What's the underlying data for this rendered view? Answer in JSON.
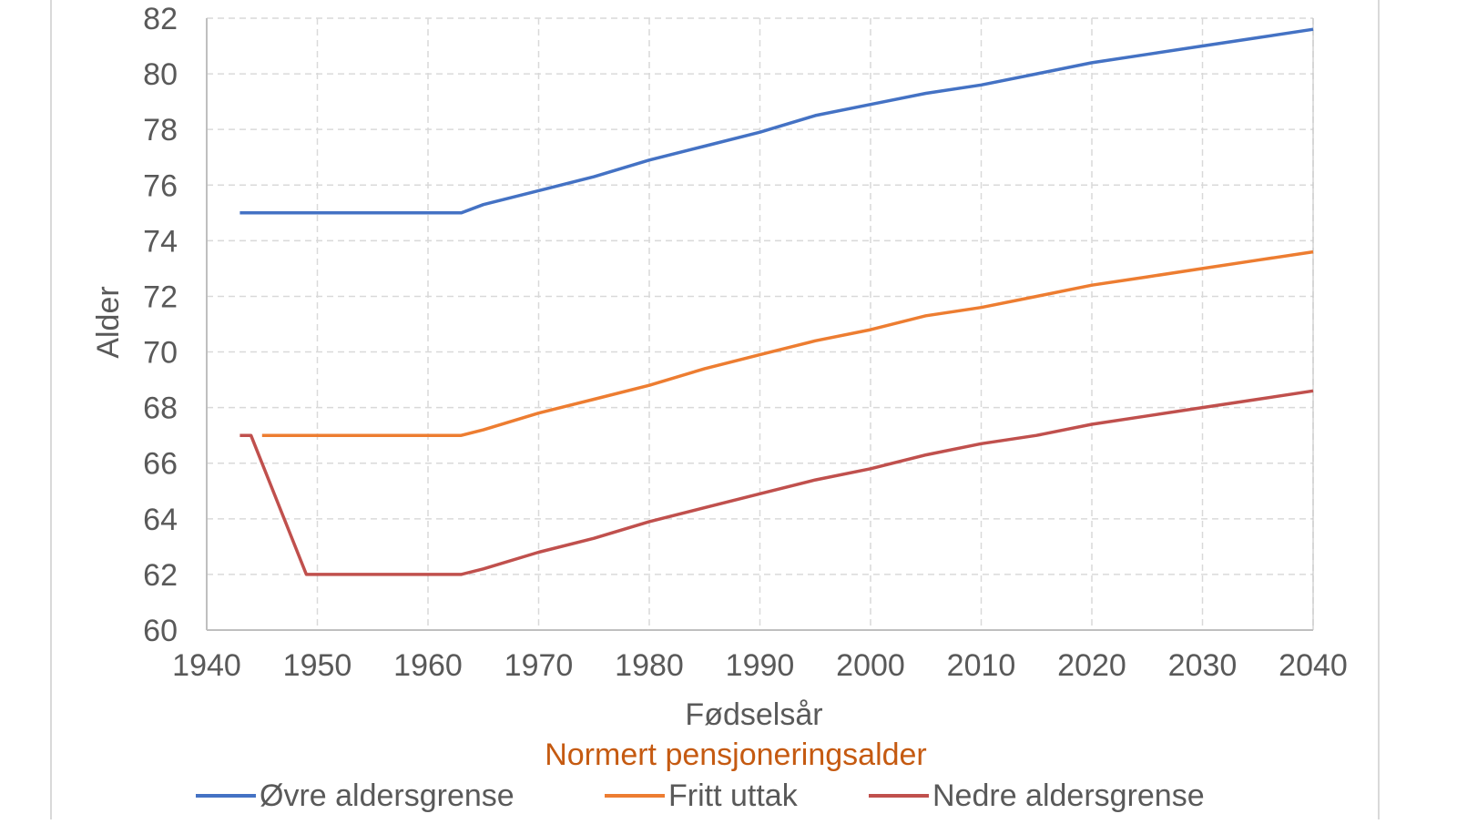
{
  "chart_data": {
    "type": "line",
    "title": "",
    "xlabel": "Fødselsår",
    "ylabel": "Alder",
    "subtitle_below": "Normert pensjoneringsalder",
    "xlim": [
      1940,
      2040
    ],
    "ylim": [
      60,
      82
    ],
    "x_ticks": [
      "1940",
      "1950",
      "1960",
      "1970",
      "1980",
      "1990",
      "2000",
      "2010",
      "2020",
      "2030",
      "2040"
    ],
    "y_ticks": [
      "60",
      "62",
      "64",
      "66",
      "68",
      "70",
      "72",
      "74",
      "76",
      "78",
      "80",
      "82"
    ],
    "grid": true,
    "legend_position": "bottom",
    "colors": {
      "subtitle": "#c55a11",
      "axis_text": "#595959",
      "grid": "#d9d9d9"
    },
    "series": [
      {
        "name": "Øvre aldersgrense",
        "color": "#4472c4",
        "points": [
          [
            1943,
            75
          ],
          [
            1963,
            75
          ],
          [
            1965,
            75.3
          ],
          [
            1970,
            75.8
          ],
          [
            1975,
            76.3
          ],
          [
            1980,
            76.9
          ],
          [
            1985,
            77.4
          ],
          [
            1990,
            77.9
          ],
          [
            1995,
            78.5
          ],
          [
            2000,
            78.9
          ],
          [
            2005,
            79.3
          ],
          [
            2010,
            79.6
          ],
          [
            2015,
            80.0
          ],
          [
            2020,
            80.4
          ],
          [
            2025,
            80.7
          ],
          [
            2030,
            81.0
          ],
          [
            2035,
            81.3
          ],
          [
            2040,
            81.6
          ]
        ]
      },
      {
        "name": "Fritt uttak",
        "color": "#ed7d31",
        "points": [
          [
            1945,
            67
          ],
          [
            1963,
            67
          ],
          [
            1965,
            67.2
          ],
          [
            1970,
            67.8
          ],
          [
            1975,
            68.3
          ],
          [
            1980,
            68.8
          ],
          [
            1985,
            69.4
          ],
          [
            1990,
            69.9
          ],
          [
            1995,
            70.4
          ],
          [
            2000,
            70.8
          ],
          [
            2005,
            71.3
          ],
          [
            2010,
            71.6
          ],
          [
            2015,
            72.0
          ],
          [
            2020,
            72.4
          ],
          [
            2025,
            72.7
          ],
          [
            2030,
            73.0
          ],
          [
            2035,
            73.3
          ],
          [
            2040,
            73.6
          ]
        ]
      },
      {
        "name": "Nedre aldersgrense",
        "color": "#c0504d",
        "points": [
          [
            1943,
            67
          ],
          [
            1944,
            67
          ],
          [
            1949,
            62
          ],
          [
            1963,
            62
          ],
          [
            1965,
            62.2
          ],
          [
            1970,
            62.8
          ],
          [
            1975,
            63.3
          ],
          [
            1980,
            63.9
          ],
          [
            1985,
            64.4
          ],
          [
            1990,
            64.9
          ],
          [
            1995,
            65.4
          ],
          [
            2000,
            65.8
          ],
          [
            2005,
            66.3
          ],
          [
            2010,
            66.7
          ],
          [
            2015,
            67.0
          ],
          [
            2020,
            67.4
          ],
          [
            2025,
            67.7
          ],
          [
            2030,
            68.0
          ],
          [
            2035,
            68.3
          ],
          [
            2040,
            68.6
          ]
        ]
      }
    ]
  }
}
